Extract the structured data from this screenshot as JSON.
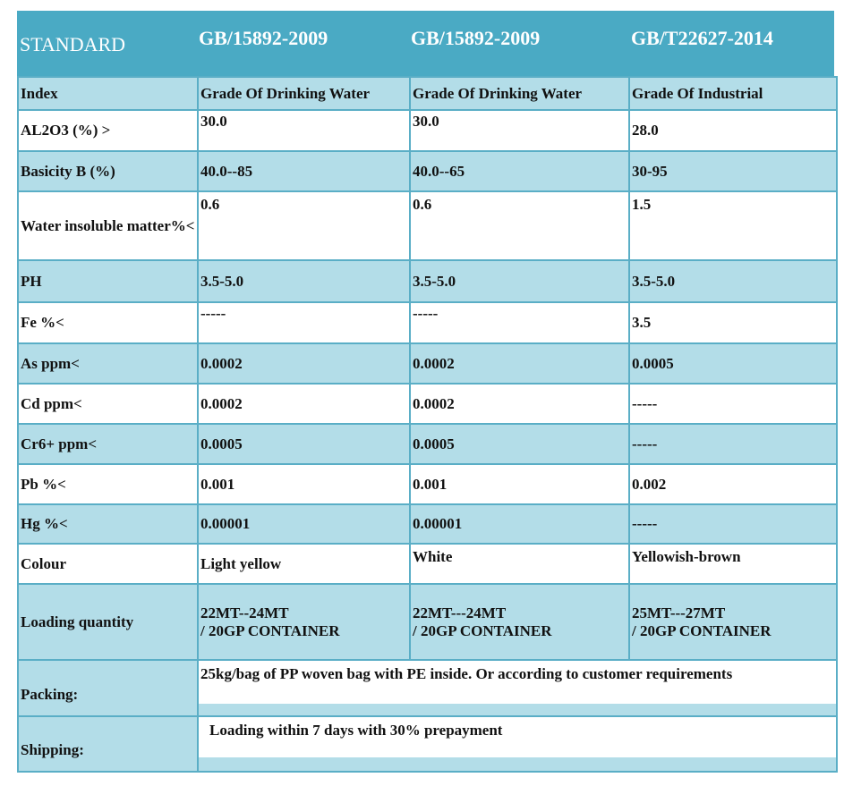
{
  "header": {
    "standard": "STANDARD",
    "cols": [
      "GB/15892-2009",
      "GB/15892-2009",
      "GB/T22627-2014"
    ]
  },
  "rows": [
    {
      "label": "Index",
      "values": [
        "Grade Of Drinking Water",
        "Grade Of Drinking Water",
        "Grade Of Industrial"
      ]
    },
    {
      "label": "AL2O3 (%) >",
      "values": [
        "30.0",
        "30.0",
        "28.0"
      ]
    },
    {
      "label": "Basicity B (%)",
      "values": [
        "40.0--85",
        "40.0--65",
        "30-95"
      ]
    },
    {
      "label": "Water insoluble matter%<",
      "values": [
        "0.6",
        "0.6",
        "1.5"
      ]
    },
    {
      "label": "PH",
      "values": [
        "3.5-5.0",
        "3.5-5.0",
        "3.5-5.0"
      ]
    },
    {
      "label": "Fe %<",
      "values": [
        "-----",
        "-----",
        "3.5"
      ]
    },
    {
      "label": "As ppm<",
      "values": [
        "0.0002",
        "0.0002",
        "0.0005"
      ]
    },
    {
      "label": "Cd ppm<",
      "values": [
        "0.0002",
        "0.0002",
        "-----"
      ]
    },
    {
      "label": "Cr6+ ppm<",
      "values": [
        "0.0005",
        "0.0005",
        "-----"
      ]
    },
    {
      "label": "Pb %<",
      "values": [
        "0.001",
        "0.001",
        "0.002"
      ]
    },
    {
      "label": "Hg %<",
      "values": [
        "0.00001",
        "0.00001",
        "-----"
      ]
    },
    {
      "label": "Colour",
      "values": [
        "Light yellow",
        "White",
        "Yellowish-brown"
      ]
    },
    {
      "label": "Loading quantity",
      "values": [
        "22MT--24MT / 20GP CONTAINER",
        "22MT---24MT / 20GP CONTAINER",
        "25MT---27MT / 20GP CONTAINER"
      ]
    }
  ],
  "packing": {
    "label": "Packing:",
    "value": "25kg/bag of PP woven bag with PE inside. Or according to customer requirements"
  },
  "shipping": {
    "label": "Shipping:",
    "value": "Loading within 7 days with 30% prepayment"
  },
  "colors": {
    "header_bg": "#4aaac4",
    "band_bg": "#b3dde8",
    "border": "#5aaec6"
  }
}
